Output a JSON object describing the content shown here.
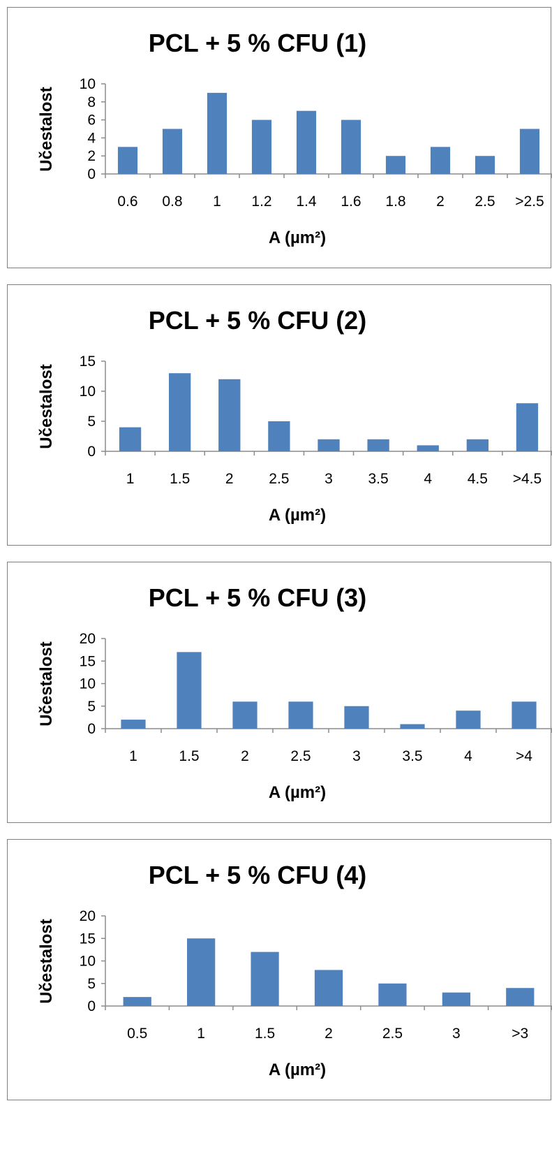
{
  "colors": {
    "bar": "#4f81bd",
    "axis": "#8c8c8c",
    "frame": "#7f7f7f"
  },
  "chart_data": [
    {
      "type": "bar",
      "title": "PCL + 5 % CFU (1)",
      "xlabel": "A (µm²)",
      "ylabel": "Učestalost",
      "categories": [
        "0.6",
        "0.8",
        "1",
        "1.2",
        "1.4",
        "1.6",
        "1.8",
        "2",
        "2.5",
        ">2.5"
      ],
      "values": [
        3,
        5,
        9,
        6,
        7,
        6,
        2,
        3,
        2,
        5
      ],
      "ylim": [
        0,
        10
      ],
      "yticks": [
        "0",
        "2",
        "4",
        "6",
        "8",
        "10"
      ],
      "grid": false,
      "legend": "none"
    },
    {
      "type": "bar",
      "title": "PCL + 5 % CFU (2)",
      "xlabel": "A (µm²)",
      "ylabel": "Učestalost",
      "categories": [
        "1",
        "1.5",
        "2",
        "2.5",
        "3",
        "3.5",
        "4",
        "4.5",
        ">4.5"
      ],
      "values": [
        4,
        13,
        12,
        5,
        2,
        2,
        1,
        2,
        8
      ],
      "ylim": [
        0,
        15
      ],
      "yticks": [
        "0",
        "5",
        "10",
        "15"
      ],
      "grid": false,
      "legend": "none"
    },
    {
      "type": "bar",
      "title": "PCL + 5 % CFU (3)",
      "xlabel": "A (µm²)",
      "ylabel": "Učestalost",
      "categories": [
        "1",
        "1.5",
        "2",
        "2.5",
        "3",
        "3.5",
        "4",
        ">4"
      ],
      "values": [
        2,
        17,
        6,
        6,
        5,
        1,
        4,
        6
      ],
      "ylim": [
        0,
        20
      ],
      "yticks": [
        "0",
        "5",
        "10",
        "15",
        "20"
      ],
      "grid": false,
      "legend": "none"
    },
    {
      "type": "bar",
      "title": "PCL + 5 % CFU (4)",
      "xlabel": "A (µm²)",
      "ylabel": "Učestalost",
      "categories": [
        "0.5",
        "1",
        "1.5",
        "2",
        "2.5",
        "3",
        ">3"
      ],
      "values": [
        2,
        15,
        12,
        8,
        5,
        3,
        4
      ],
      "ylim": [
        0,
        20
      ],
      "yticks": [
        "0",
        "5",
        "10",
        "15",
        "20"
      ],
      "grid": false,
      "legend": "none"
    }
  ]
}
